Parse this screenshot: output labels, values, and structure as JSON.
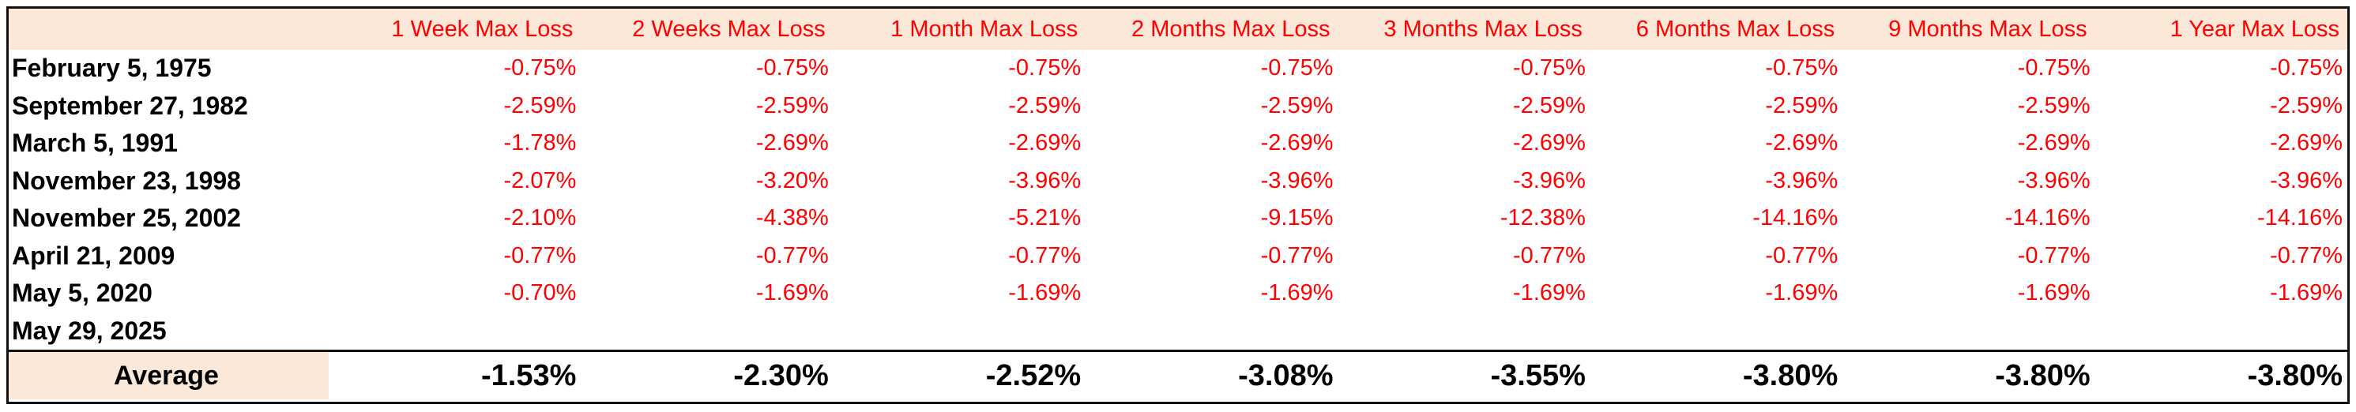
{
  "table": {
    "headers": [
      "",
      "1 Week Max Loss",
      "2 Weeks Max Loss",
      "1 Month Max Loss",
      "2 Months Max Loss",
      "3 Months Max Loss",
      "6 Months Max Loss",
      "9 Months Max Loss",
      "1 Year Max Loss"
    ],
    "rows": [
      {
        "date": "February 5, 1975",
        "values": [
          "-0.75%",
          "-0.75%",
          "-0.75%",
          "-0.75%",
          "-0.75%",
          "-0.75%",
          "-0.75%",
          "-0.75%"
        ]
      },
      {
        "date": "September 27, 1982",
        "values": [
          "-2.59%",
          "-2.59%",
          "-2.59%",
          "-2.59%",
          "-2.59%",
          "-2.59%",
          "-2.59%",
          "-2.59%"
        ]
      },
      {
        "date": "March 5, 1991",
        "values": [
          "-1.78%",
          "-2.69%",
          "-2.69%",
          "-2.69%",
          "-2.69%",
          "-2.69%",
          "-2.69%",
          "-2.69%"
        ]
      },
      {
        "date": "November 23, 1998",
        "values": [
          "-2.07%",
          "-3.20%",
          "-3.96%",
          "-3.96%",
          "-3.96%",
          "-3.96%",
          "-3.96%",
          "-3.96%"
        ]
      },
      {
        "date": "November 25, 2002",
        "values": [
          "-2.10%",
          "-4.38%",
          "-5.21%",
          "-9.15%",
          "-12.38%",
          "-14.16%",
          "-14.16%",
          "-14.16%"
        ]
      },
      {
        "date": "April 21, 2009",
        "values": [
          "-0.77%",
          "-0.77%",
          "-0.77%",
          "-0.77%",
          "-0.77%",
          "-0.77%",
          "-0.77%",
          "-0.77%"
        ]
      },
      {
        "date": "May 5, 2020",
        "values": [
          "-0.70%",
          "-1.69%",
          "-1.69%",
          "-1.69%",
          "-1.69%",
          "-1.69%",
          "-1.69%",
          "-1.69%"
        ]
      },
      {
        "date": "May 29, 2025",
        "values": [
          "",
          "",
          "",
          "",
          "",
          "",
          "",
          ""
        ]
      }
    ],
    "average": {
      "label": "Average",
      "values": [
        "-1.53%",
        "-2.30%",
        "-2.52%",
        "-3.08%",
        "-3.55%",
        "-3.80%",
        "-3.80%",
        "-3.80%"
      ]
    }
  },
  "colors": {
    "header_background": "#fce8d9",
    "loss_text": "#ff0000",
    "text": "#000000",
    "border": "#111111"
  }
}
